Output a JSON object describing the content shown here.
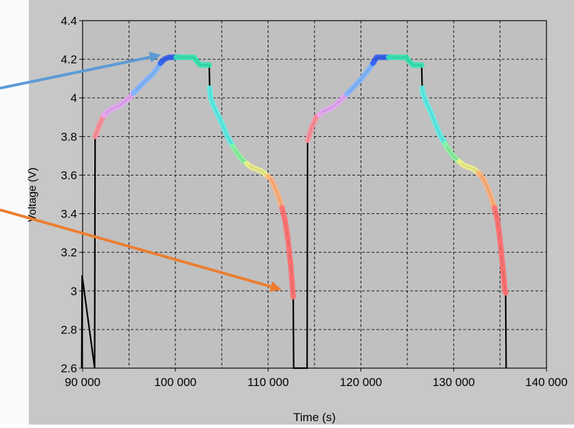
{
  "chart_data": {
    "type": "line",
    "xlabel": "Time (s)",
    "ylabel": "Voltage (V)",
    "xlim": [
      90000,
      140000
    ],
    "ylim": [
      2.6,
      4.4
    ],
    "x_ticks": [
      90000,
      100000,
      110000,
      120000,
      130000,
      140000
    ],
    "x_tick_labels": [
      "90 000",
      "100 000",
      "110 000",
      "120 000",
      "130 000",
      "140 000"
    ],
    "y_ticks": [
      2.6,
      2.8,
      3.0,
      3.2,
      3.4,
      3.6,
      3.8,
      4.0,
      4.2,
      4.4
    ],
    "y_tick_labels": [
      "2.6",
      "2.8",
      "3",
      "3.2",
      "3.4",
      "3.6",
      "3.8",
      "4",
      "4.2",
      "4.4"
    ],
    "grid": true,
    "grid_style": "dashed",
    "background_color": "#c0c0c0",
    "line_color": "#000000",
    "series": [
      {
        "x": [
          89900,
          89950,
          91300,
          91350,
          91500,
          91800,
          92300,
          93000,
          94000,
          95000,
          96000,
          96800,
          97500,
          98000,
          98400,
          98800,
          99300,
          99800,
          100100,
          100800,
          101400,
          102000,
          102300,
          102700,
          103100,
          103400,
          103650,
          103700,
          103800,
          104100,
          104600,
          105100,
          105600,
          106200,
          106700,
          107200,
          107700,
          108200,
          108800,
          109300,
          109800,
          110300,
          110700,
          111100,
          111500,
          111800,
          112000,
          112200,
          112350,
          112500,
          112600,
          112700,
          112750,
          114200,
          114250,
          114400,
          114700,
          115200,
          115900,
          116900,
          117900,
          118900,
          119700,
          120400,
          120900,
          121300,
          121700,
          122200,
          122700,
          123000,
          123700,
          124300,
          124900,
          125200,
          125600,
          126000,
          126300,
          126550,
          126600,
          126700,
          127000,
          127500,
          128000,
          128500,
          129100,
          129600,
          130100,
          130600,
          131100,
          131700,
          132200,
          132700,
          133200,
          133600,
          134000,
          134400,
          134700,
          134900,
          135100,
          135250,
          135400,
          135500,
          135600,
          135650
        ],
        "y": [
          2.6,
          3.08,
          2.6,
          3.8,
          3.82,
          3.86,
          3.91,
          3.94,
          3.96,
          4.0,
          4.05,
          4.09,
          4.12,
          4.15,
          4.18,
          4.2,
          4.21,
          4.21,
          4.21,
          4.21,
          4.21,
          4.21,
          4.19,
          4.17,
          4.17,
          4.17,
          4.17,
          4.05,
          4.0,
          3.96,
          3.91,
          3.86,
          3.8,
          3.75,
          3.71,
          3.68,
          3.66,
          3.64,
          3.63,
          3.62,
          3.6,
          3.58,
          3.54,
          3.49,
          3.43,
          3.37,
          3.31,
          3.24,
          3.17,
          3.1,
          3.03,
          2.97,
          2.6,
          2.6,
          3.78,
          3.8,
          3.85,
          3.9,
          3.93,
          3.95,
          3.99,
          4.04,
          4.08,
          4.12,
          4.15,
          4.18,
          4.21,
          4.21,
          4.21,
          4.21,
          4.21,
          4.21,
          4.21,
          4.19,
          4.17,
          4.17,
          4.17,
          4.17,
          4.05,
          4.02,
          3.98,
          3.93,
          3.87,
          3.81,
          3.76,
          3.72,
          3.69,
          3.67,
          3.65,
          3.64,
          3.63,
          3.61,
          3.58,
          3.54,
          3.49,
          3.43,
          3.37,
          3.3,
          3.22,
          3.14,
          3.07,
          3.01,
          2.99,
          2.6
        ]
      }
    ],
    "highlight_segments": [
      {
        "from": 91350,
        "to": 92300,
        "color": "#ff8f9a"
      },
      {
        "from": 92300,
        "to": 95500,
        "color": "#e5a6f5"
      },
      {
        "from": 95500,
        "to": 98400,
        "color": "#7fb6ff"
      },
      {
        "from": 98400,
        "to": 100100,
        "color": "#2f5cf0"
      },
      {
        "from": 100100,
        "to": 103650,
        "color": "#33e5b3"
      },
      {
        "from": 103700,
        "to": 106200,
        "color": "#5cf0e8"
      },
      {
        "from": 106200,
        "to": 107700,
        "color": "#8af5a0"
      },
      {
        "from": 107700,
        "to": 110000,
        "color": "#f0f08a"
      },
      {
        "from": 110000,
        "to": 111500,
        "color": "#ffb07a"
      },
      {
        "from": 111500,
        "to": 112700,
        "color": "#ff6f6f"
      },
      {
        "from": 114250,
        "to": 115500,
        "color": "#ff8f9a"
      },
      {
        "from": 115500,
        "to": 118500,
        "color": "#e5a6f5"
      },
      {
        "from": 118500,
        "to": 121300,
        "color": "#7fb6ff"
      },
      {
        "from": 121300,
        "to": 123000,
        "color": "#2f5cf0"
      },
      {
        "from": 123000,
        "to": 126550,
        "color": "#33e5b3"
      },
      {
        "from": 126600,
        "to": 129100,
        "color": "#5cf0e8"
      },
      {
        "from": 129100,
        "to": 130600,
        "color": "#8af5a0"
      },
      {
        "from": 130600,
        "to": 132700,
        "color": "#f0f08a"
      },
      {
        "from": 132700,
        "to": 134400,
        "color": "#ffb07a"
      },
      {
        "from": 134400,
        "to": 135600,
        "color": "#ff6f6f"
      }
    ],
    "annotations": [
      {
        "type": "arrow",
        "color": "#5b9bd5",
        "from": [
          80000,
          4.05
        ],
        "to": [
          98200,
          4.22
        ]
      },
      {
        "type": "arrow",
        "color": "#ed7d31",
        "from": [
          80000,
          3.42
        ],
        "to": [
          111200,
          3.01
        ]
      }
    ]
  }
}
